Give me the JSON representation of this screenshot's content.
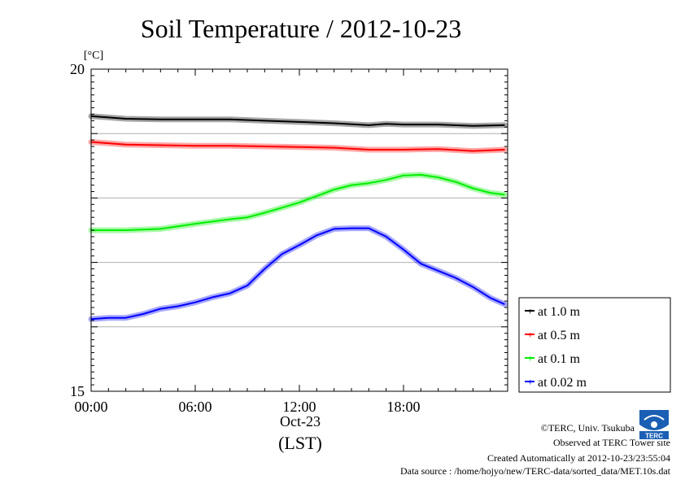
{
  "chart_data": {
    "type": "line",
    "title": "Soil Temperature / 2012-10-23",
    "ylabel": "[°C]",
    "xlabel": "(LST)",
    "x_date_label": "Oct-23",
    "ylim": [
      15,
      20
    ],
    "yticks": [
      "15",
      "20"
    ],
    "xlim": [
      "00:00",
      "24:00"
    ],
    "xticks": [
      "00:00",
      "06:00",
      "12:00",
      "18:00"
    ],
    "grid": true,
    "legend_position": "right",
    "series": [
      {
        "name": "at 1.0 m",
        "color": "#000000",
        "points": [
          [
            "00:00",
            19.27
          ],
          [
            "02:00",
            19.23
          ],
          [
            "04:00",
            19.22
          ],
          [
            "06:00",
            19.22
          ],
          [
            "08:00",
            19.22
          ],
          [
            "10:00",
            19.2
          ],
          [
            "12:00",
            19.18
          ],
          [
            "14:00",
            19.16
          ],
          [
            "16:00",
            19.13
          ],
          [
            "17:00",
            19.15
          ],
          [
            "18:00",
            19.14
          ],
          [
            "20:00",
            19.14
          ],
          [
            "22:00",
            19.12
          ],
          [
            "23:50",
            19.13
          ]
        ]
      },
      {
        "name": "at 0.5 m",
        "color": "#ff0000",
        "points": [
          [
            "00:00",
            18.87
          ],
          [
            "02:00",
            18.83
          ],
          [
            "04:00",
            18.82
          ],
          [
            "06:00",
            18.81
          ],
          [
            "08:00",
            18.81
          ],
          [
            "10:00",
            18.8
          ],
          [
            "12:00",
            18.79
          ],
          [
            "14:00",
            18.78
          ],
          [
            "16:00",
            18.75
          ],
          [
            "18:00",
            18.75
          ],
          [
            "20:00",
            18.76
          ],
          [
            "22:00",
            18.73
          ],
          [
            "23:50",
            18.75
          ]
        ]
      },
      {
        "name": "at 0.1 m",
        "color": "#00ee00",
        "points": [
          [
            "00:00",
            17.5
          ],
          [
            "02:00",
            17.5
          ],
          [
            "04:00",
            17.52
          ],
          [
            "06:00",
            17.6
          ],
          [
            "08:00",
            17.67
          ],
          [
            "09:00",
            17.7
          ],
          [
            "10:00",
            17.77
          ],
          [
            "11:00",
            17.85
          ],
          [
            "12:00",
            17.93
          ],
          [
            "13:00",
            18.03
          ],
          [
            "14:00",
            18.13
          ],
          [
            "15:00",
            18.2
          ],
          [
            "16:00",
            18.23
          ],
          [
            "17:00",
            18.28
          ],
          [
            "18:00",
            18.35
          ],
          [
            "19:00",
            18.36
          ],
          [
            "20:00",
            18.32
          ],
          [
            "21:00",
            18.25
          ],
          [
            "22:00",
            18.15
          ],
          [
            "23:00",
            18.08
          ],
          [
            "23:50",
            18.05
          ]
        ]
      },
      {
        "name": "at 0.02 m",
        "color": "#0000ff",
        "points": [
          [
            "00:00",
            16.12
          ],
          [
            "01:00",
            16.14
          ],
          [
            "02:00",
            16.14
          ],
          [
            "03:00",
            16.2
          ],
          [
            "04:00",
            16.28
          ],
          [
            "05:00",
            16.32
          ],
          [
            "06:00",
            16.38
          ],
          [
            "07:00",
            16.46
          ],
          [
            "08:00",
            16.52
          ],
          [
            "09:00",
            16.64
          ],
          [
            "10:00",
            16.9
          ],
          [
            "11:00",
            17.13
          ],
          [
            "12:00",
            17.27
          ],
          [
            "13:00",
            17.42
          ],
          [
            "14:00",
            17.52
          ],
          [
            "15:00",
            17.53
          ],
          [
            "16:00",
            17.53
          ],
          [
            "17:00",
            17.4
          ],
          [
            "18:00",
            17.2
          ],
          [
            "19:00",
            16.98
          ],
          [
            "20:00",
            16.87
          ],
          [
            "21:00",
            16.76
          ],
          [
            "22:00",
            16.62
          ],
          [
            "23:00",
            16.45
          ],
          [
            "23:50",
            16.35
          ]
        ]
      }
    ]
  },
  "credits": {
    "copyright": "©TERC, Univ. Tsukuba",
    "observed": "Observed at TERC Tower site",
    "created": "Created Automatically at 2012-10-23/23:55:04",
    "source": "Data source : /home/hojyo/new/TERC-data/sorted_data/MET.10s.dat",
    "logo_text": "TERC"
  }
}
